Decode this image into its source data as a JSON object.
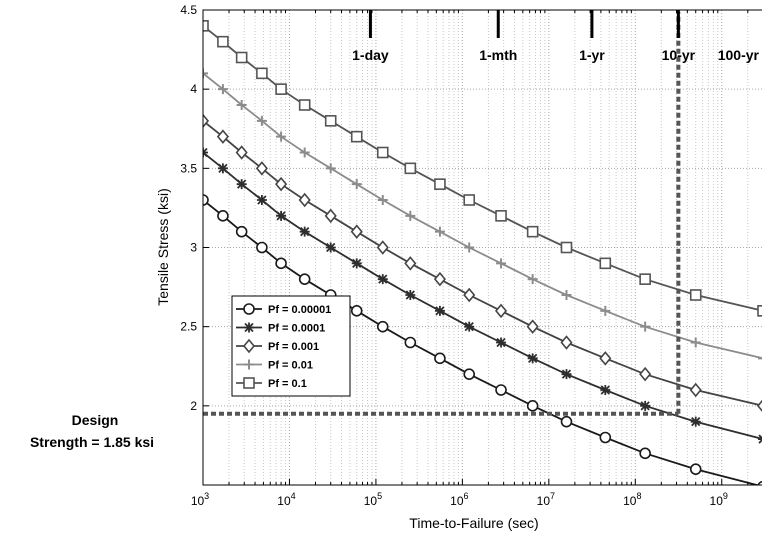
{
  "chart_data": {
    "type": "line",
    "xlabel": "Time-to-Failure (sec)",
    "ylabel": "Tensile Stress (ksi)",
    "xscale": "log",
    "xlim": [
      1000,
      3000000000
    ],
    "ylim": [
      1.5,
      4.5
    ],
    "x_ticks": [
      {
        "value": 1000,
        "base": "10",
        "exp": "3"
      },
      {
        "value": 10000,
        "base": "10",
        "exp": "4"
      },
      {
        "value": 100000,
        "base": "10",
        "exp": "5"
      },
      {
        "value": 1000000,
        "base": "10",
        "exp": "6"
      },
      {
        "value": 10000000,
        "base": "10",
        "exp": "7"
      },
      {
        "value": 100000000,
        "base": "10",
        "exp": "8"
      },
      {
        "value": 1000000000,
        "base": "10",
        "exp": "9"
      }
    ],
    "y_ticks": [
      {
        "value": 2,
        "label": "2"
      },
      {
        "value": 2.5,
        "label": "2.5"
      },
      {
        "value": 3,
        "label": "3"
      },
      {
        "value": 3.5,
        "label": "3.5"
      },
      {
        "value": 4,
        "label": "4"
      },
      {
        "value": 4.5,
        "label": "4.5"
      }
    ],
    "grid": true,
    "legend_position": "lower-left",
    "series": [
      {
        "name": "Pf = 0.00001",
        "marker": "circle",
        "color": "#1a1a1a",
        "x": [
          1000,
          1700,
          2800,
          4800,
          8000,
          15000,
          30000,
          60000,
          120000,
          250000,
          550000,
          1200000,
          2800000,
          6500000,
          16000000,
          45000000,
          130000000,
          500000000,
          3000000000
        ],
        "y": [
          3.3,
          3.2,
          3.1,
          3.0,
          2.9,
          2.8,
          2.7,
          2.6,
          2.5,
          2.4,
          2.3,
          2.2,
          2.1,
          2.0,
          1.9,
          1.8,
          1.7,
          1.6,
          1.49
        ]
      },
      {
        "name": "Pf = 0.0001",
        "marker": "asterisk",
        "color": "#2e2e2e",
        "x": [
          1000,
          1700,
          2800,
          4800,
          8000,
          15000,
          30000,
          60000,
          120000,
          250000,
          550000,
          1200000,
          2800000,
          6500000,
          16000000,
          45000000,
          130000000,
          500000000,
          3000000000
        ],
        "y": [
          3.6,
          3.5,
          3.4,
          3.3,
          3.2,
          3.1,
          3.0,
          2.9,
          2.8,
          2.7,
          2.6,
          2.5,
          2.4,
          2.3,
          2.2,
          2.1,
          2.0,
          1.9,
          1.79
        ]
      },
      {
        "name": "Pf = 0.001",
        "marker": "diamond",
        "color": "#444444",
        "x": [
          1000,
          1700,
          2800,
          4800,
          8000,
          15000,
          30000,
          60000,
          120000,
          250000,
          550000,
          1200000,
          2800000,
          6500000,
          16000000,
          45000000,
          130000000,
          500000000,
          3000000000
        ],
        "y": [
          3.8,
          3.7,
          3.6,
          3.5,
          3.4,
          3.3,
          3.2,
          3.1,
          3.0,
          2.9,
          2.8,
          2.7,
          2.6,
          2.5,
          2.4,
          2.3,
          2.2,
          2.1,
          2.0
        ]
      },
      {
        "name": "Pf = 0.01",
        "marker": "plus",
        "color": "#8c8c8c",
        "x": [
          1000,
          1700,
          2800,
          4800,
          8000,
          15000,
          30000,
          60000,
          120000,
          250000,
          550000,
          1200000,
          2800000,
          6500000,
          16000000,
          45000000,
          130000000,
          500000000,
          3000000000
        ],
        "y": [
          4.1,
          4.0,
          3.9,
          3.8,
          3.7,
          3.6,
          3.5,
          3.4,
          3.3,
          3.2,
          3.1,
          3.0,
          2.9,
          2.8,
          2.7,
          2.6,
          2.5,
          2.4,
          2.3
        ]
      },
      {
        "name": "Pf = 0.1",
        "marker": "square",
        "color": "#555555",
        "x": [
          1000,
          1700,
          2800,
          4800,
          8000,
          15000,
          30000,
          60000,
          120000,
          250000,
          550000,
          1200000,
          2800000,
          6500000,
          16000000,
          45000000,
          130000000,
          500000000,
          3000000000
        ],
        "y": [
          4.4,
          4.3,
          4.2,
          4.1,
          4.0,
          3.9,
          3.8,
          3.7,
          3.6,
          3.5,
          3.4,
          3.3,
          3.2,
          3.1,
          3.0,
          2.9,
          2.8,
          2.7,
          2.6
        ]
      }
    ],
    "time_markers": [
      {
        "label": "1-day",
        "x": 86400
      },
      {
        "label": "1-mth",
        "x": 2600000
      },
      {
        "label": "1-yr",
        "x": 31500000
      },
      {
        "label": "10-yr",
        "x": 315000000
      },
      {
        "label": "100-yr",
        "x": 3150000000
      }
    ],
    "design_strength": {
      "line1": "Design",
      "line2": "Strength = 1.85 ksi",
      "y": 1.95,
      "x": 315000000
    }
  }
}
